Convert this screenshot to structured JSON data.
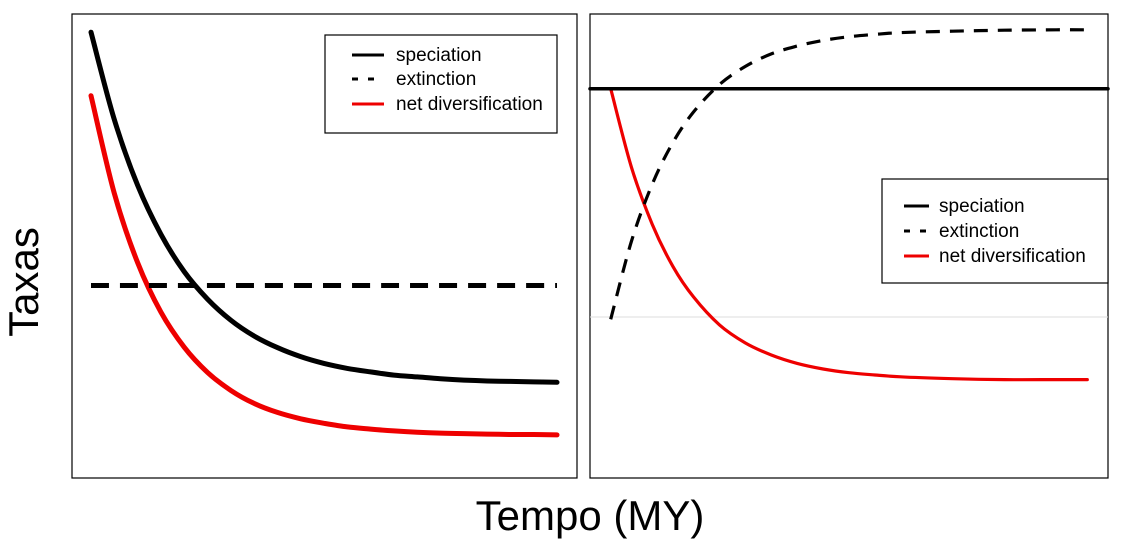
{
  "figure": {
    "xlabel": "Tempo (MY)",
    "ylabel": "Taxas"
  },
  "chart_data": [
    {
      "type": "line",
      "grid": false,
      "axis_ticks": false,
      "xlim": [
        0,
        100
      ],
      "ylim": [
        0,
        100
      ],
      "legend_position": "top-right",
      "series": [
        {
          "name": "speciation",
          "color": "#000000",
          "style": "solid",
          "x": [
            0,
            5,
            10,
            15,
            20,
            25,
            30,
            35,
            40,
            45,
            50,
            55,
            60,
            65,
            70,
            75,
            80,
            85,
            90,
            95,
            100
          ],
          "y": [
            96.4,
            77.0,
            62.4,
            51.5,
            43.2,
            37.1,
            32.4,
            28.9,
            26.3,
            24.3,
            22.8,
            21.7,
            20.9,
            20.2,
            19.8,
            19.4,
            19.1,
            18.9,
            18.8,
            18.7,
            18.6
          ]
        },
        {
          "name": "extinction",
          "color": "#000000",
          "style": "dashed",
          "x": [
            0,
            100
          ],
          "y": [
            40.1,
            40.1
          ]
        },
        {
          "name": "net diversification",
          "color": "#ee0000",
          "style": "solid",
          "x": [
            0,
            5,
            10,
            15,
            20,
            25,
            30,
            35,
            40,
            45,
            50,
            55,
            60,
            65,
            70,
            75,
            80,
            85,
            90,
            95,
            100
          ],
          "y": [
            82.3,
            60.6,
            45.2,
            34.2,
            26.4,
            20.8,
            16.8,
            13.9,
            11.9,
            10.5,
            9.5,
            8.7,
            8.2,
            7.8,
            7.5,
            7.3,
            7.2,
            7.1,
            7.0,
            7.0,
            6.9
          ]
        }
      ]
    },
    {
      "type": "line",
      "grid": false,
      "axis_ticks": false,
      "xlim": [
        0,
        100
      ],
      "ylim": [
        0,
        100
      ],
      "legend_position": "center-right",
      "series": [
        {
          "name": "speciation",
          "color": "#000000",
          "style": "solid",
          "x": [
            0,
            100
          ],
          "y": [
            83.9,
            83.9
          ]
        },
        {
          "name": "extinction",
          "color": "#000000",
          "style": "dashed",
          "x": [
            4,
            8,
            12,
            16,
            20,
            25,
            30,
            35,
            40,
            45,
            50,
            55,
            60,
            70,
            80,
            90,
            96
          ],
          "y": [
            34.2,
            51.0,
            63.3,
            72.3,
            78.9,
            84.8,
            88.7,
            91.4,
            93.1,
            94.3,
            95.1,
            95.6,
            96.0,
            96.3,
            96.5,
            96.6,
            96.6
          ]
        },
        {
          "name": "net diversification",
          "color": "#ee0000",
          "style": "solid",
          "x": [
            4,
            8,
            12,
            16,
            20,
            25,
            30,
            35,
            40,
            45,
            50,
            55,
            60,
            70,
            80,
            90,
            96
          ],
          "y": [
            83.9,
            67.0,
            54.7,
            45.6,
            39.0,
            33.0,
            29.1,
            26.5,
            24.7,
            23.5,
            22.7,
            22.2,
            21.8,
            21.4,
            21.2,
            21.2,
            21.2
          ]
        }
      ]
    }
  ]
}
